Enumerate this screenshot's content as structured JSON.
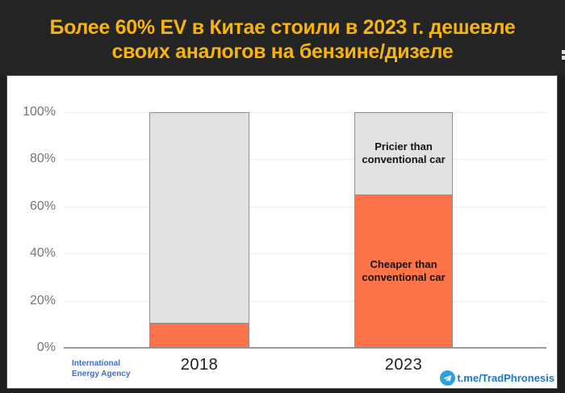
{
  "header": {
    "title_line1": "Более 60% EV в Китае стоили в 2023 г. дешевле",
    "title_line2": "своих аналогов на бензине/дизеле"
  },
  "chart_data": {
    "type": "bar",
    "stacked": true,
    "title": "Более 60% EV в Китае стоили в 2023 г. дешевле своих аналогов на бензине/дизеле",
    "categories": [
      "2018",
      "2023"
    ],
    "series": [
      {
        "name": "Cheaper than conventional car",
        "color": "#fd744a",
        "values": [
          10,
          65
        ]
      },
      {
        "name": "Pricier than conventional car",
        "color": "#e2e2e0",
        "values": [
          90,
          35
        ]
      }
    ],
    "unit": "%",
    "ylim": [
      0,
      100
    ],
    "yticks": [
      "0%",
      "20%",
      "40%",
      "60%",
      "80%",
      "100%"
    ],
    "grid": true,
    "legend_position": "none",
    "bar_annotations": [
      {
        "bar": "2023",
        "segment": "pricier",
        "text": "Pricier than conventional car"
      },
      {
        "bar": "2023",
        "segment": "cheaper",
        "text": "Cheaper than conventional car"
      }
    ],
    "source": "International Energy Agency"
  },
  "footer": {
    "source_line1": "International",
    "source_line2": "Energy Agency",
    "watermark": "t.me/TradPhronesis"
  },
  "colors": {
    "header_bg": "#242424",
    "title_yellow": "#f6b40c",
    "bar_orange": "#fd744a",
    "bar_gray": "#e2e2e0",
    "source_blue": "#3b6cd4",
    "telegram_blue": "#2ca3e0",
    "watermark_blue": "#1e78c8"
  }
}
